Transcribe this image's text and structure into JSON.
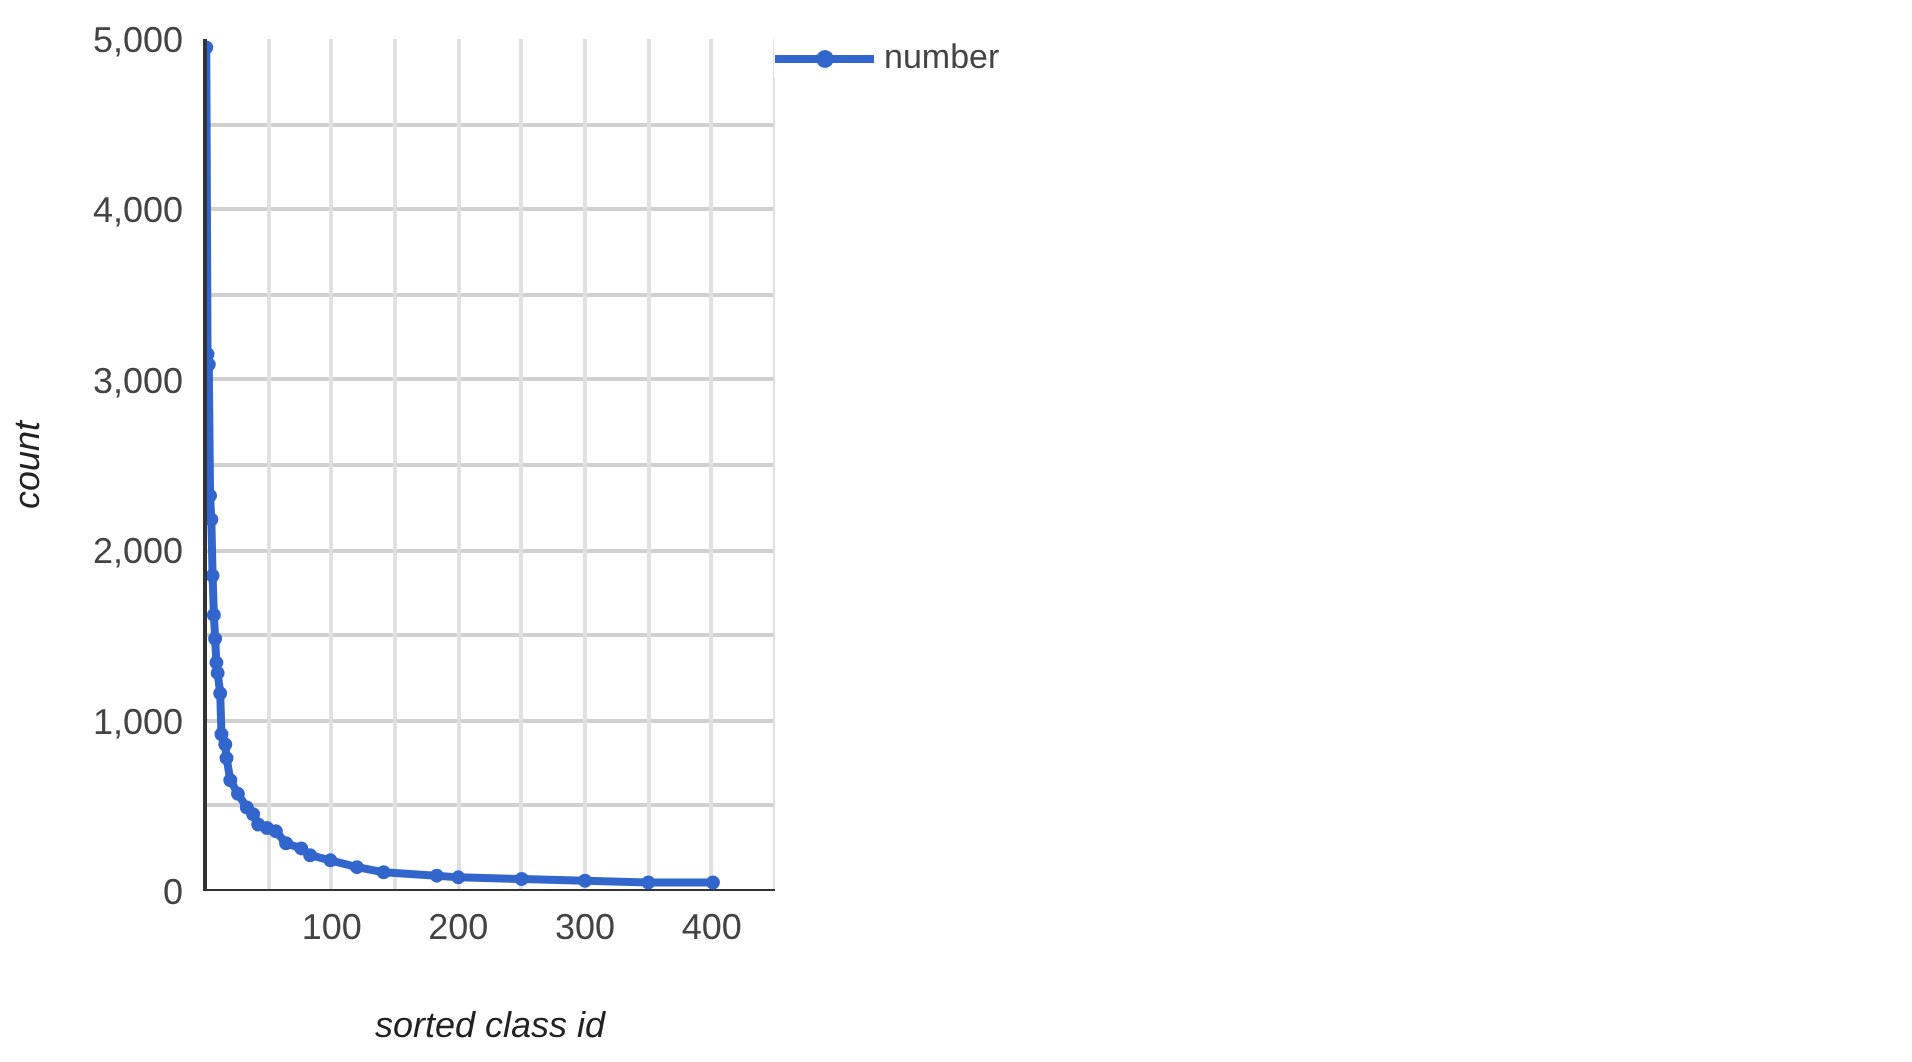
{
  "chart_data": {
    "type": "line",
    "xlabel": "sorted class id",
    "ylabel": "count",
    "xlim": [
      0,
      450
    ],
    "ylim": [
      0,
      5000
    ],
    "xticks": [
      {
        "value": 50,
        "label": null
      },
      100,
      {
        "value": 150,
        "label": null
      },
      200,
      {
        "value": 250,
        "label": null
      },
      300,
      {
        "value": 350,
        "label": null
      },
      400,
      {
        "value": 450,
        "label": null
      }
    ],
    "yticks": [
      {
        "value": 0,
        "label": "0"
      },
      {
        "value": 500,
        "label": null
      },
      {
        "value": 1000,
        "label": "1,000"
      },
      {
        "value": 1500,
        "label": null
      },
      {
        "value": 2000,
        "label": "2,000"
      },
      {
        "value": 2500,
        "label": null
      },
      {
        "value": 3000,
        "label": "3,000"
      },
      {
        "value": 3500,
        "label": null
      },
      {
        "value": 4000,
        "label": "4,000"
      },
      {
        "value": 4500,
        "label": null
      },
      {
        "value": 5000,
        "label": "5,000"
      }
    ],
    "grid": true,
    "legend": "top right",
    "marker": "circle",
    "line_style": "solid",
    "series": [
      {
        "name": "number",
        "color": "#3366cc",
        "x": [
          1,
          2,
          3,
          4,
          5,
          6,
          7,
          8,
          9,
          10,
          12,
          13,
          16,
          17,
          20,
          26,
          33,
          38,
          42,
          49,
          56,
          64,
          76,
          83,
          99,
          120,
          141,
          183,
          200,
          250,
          300,
          350,
          401
        ],
        "values": [
          4950,
          3150,
          3090,
          2320,
          2180,
          1850,
          1620,
          1480,
          1340,
          1280,
          1160,
          920,
          860,
          780,
          650,
          570,
          490,
          450,
          390,
          370,
          350,
          280,
          250,
          210,
          180,
          140,
          110,
          90,
          80,
          70,
          60,
          50,
          50
        ]
      }
    ]
  }
}
